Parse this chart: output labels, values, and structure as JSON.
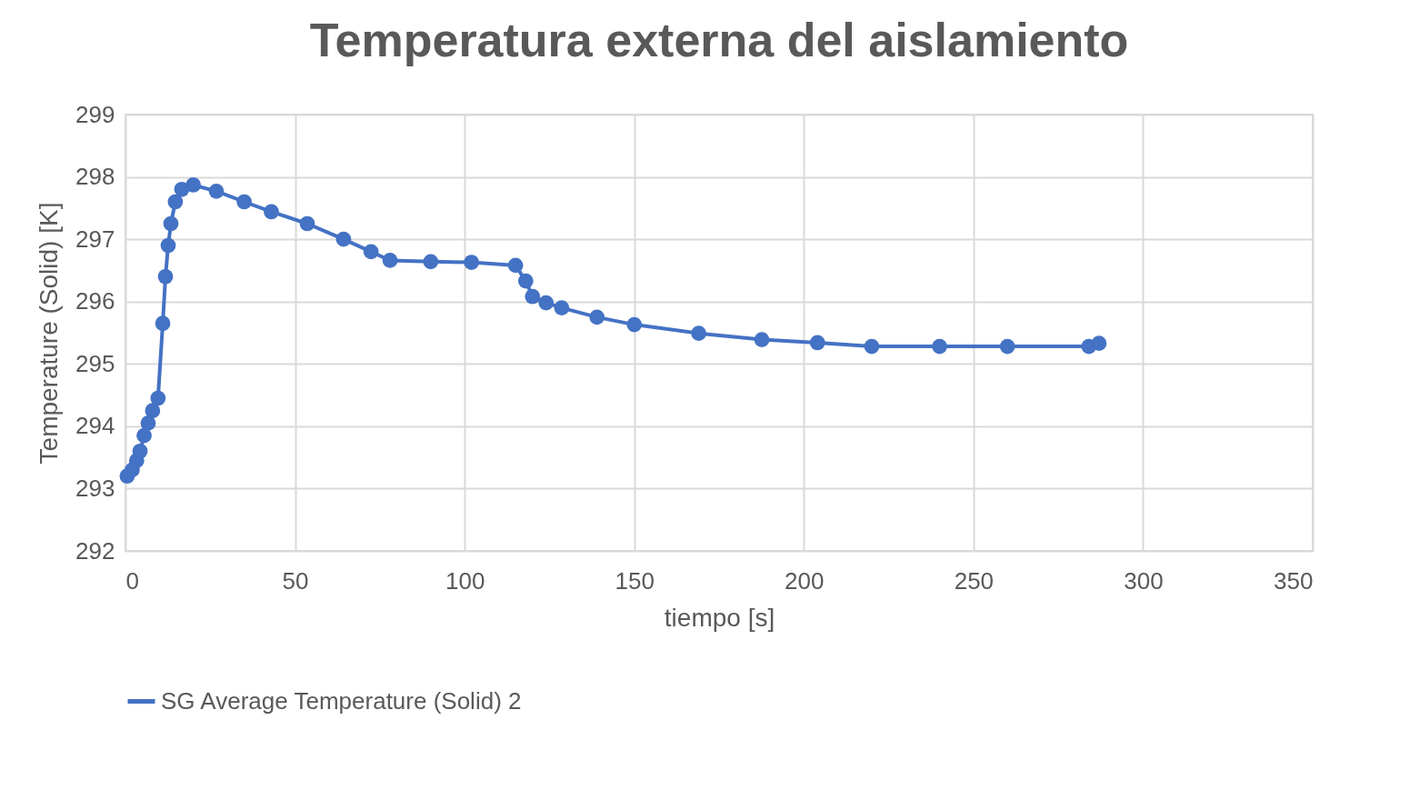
{
  "chart_data": {
    "type": "line",
    "title": "Temperatura externa del aislamiento",
    "xlabel": "tiempo [s]",
    "ylabel": "Temperature (Solid) [K]",
    "x": [
      0.5,
      2,
      3.3,
      4.3,
      5.5,
      6.7,
      8,
      9.6,
      11,
      11.8,
      12.6,
      13.4,
      14.7,
      16.6,
      20,
      26.8,
      35,
      43,
      53.6,
      64.3,
      72.4,
      78,
      90,
      102,
      115,
      118,
      120,
      124,
      128.6,
      139,
      150,
      169,
      187.6,
      204,
      220,
      240,
      260,
      284,
      287
    ],
    "series": [
      {
        "name": "SG Average Temperature (Solid) 2",
        "color": "#4472c4",
        "values": [
          293.2,
          293.3,
          293.45,
          293.6,
          293.85,
          294.05,
          294.25,
          294.45,
          295.65,
          296.4,
          296.9,
          297.25,
          297.6,
          297.8,
          297.87,
          297.77,
          297.6,
          297.44,
          297.25,
          297.0,
          296.8,
          296.66,
          296.64,
          296.63,
          296.58,
          296.33,
          296.08,
          295.98,
          295.9,
          295.75,
          295.63,
          295.49,
          295.39,
          295.34,
          295.28,
          295.28,
          295.28,
          295.28,
          295.33
        ]
      }
    ],
    "xlim": [
      0,
      350
    ],
    "xticks": [
      0,
      50,
      100,
      150,
      200,
      250,
      300,
      350
    ],
    "ylim": [
      292,
      299
    ],
    "yticks": [
      292,
      293,
      294,
      295,
      296,
      297,
      298,
      299
    ],
    "grid": true,
    "legend": "bottom",
    "marker": "circle",
    "line_style": "solid"
  }
}
